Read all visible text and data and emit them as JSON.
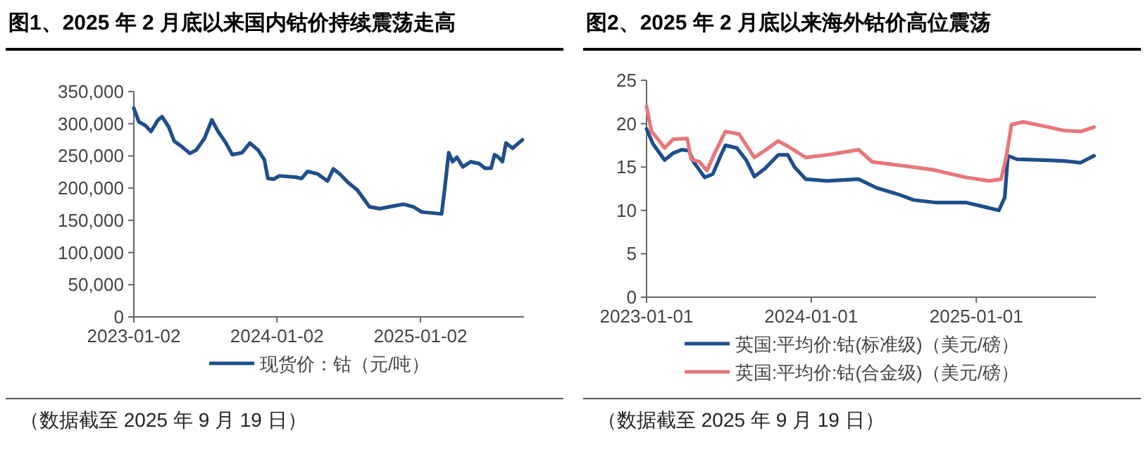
{
  "chart_data": [
    {
      "type": "line",
      "title": "图1、2025 年 2 月底以来国内钴价持续震荡走高",
      "legend": "bottom",
      "xlim": [
        "2023-01-02",
        "2025-09-23"
      ],
      "xticks": [
        "2023-01-02",
        "2024-01-02",
        "2025-01-02"
      ],
      "ylim": [
        0,
        350000
      ],
      "yticks": [
        0,
        {
          "value": 50000,
          "label": "50,000"
        },
        {
          "value": 100000,
          "label": "100,000"
        },
        {
          "value": 150000,
          "label": "150,000"
        },
        {
          "value": 200000,
          "label": "200,000"
        },
        {
          "value": 250000,
          "label": "250,000"
        },
        {
          "value": 300000,
          "label": "300,000"
        },
        {
          "value": 350000,
          "label": "350,000"
        }
      ],
      "annotations": [
        "（数据截至 2025 年 9 月 19 日）"
      ],
      "series": [
        {
          "name": "现货价：钴（元/吨）",
          "color": "#1f4e8c",
          "x": [
            "2023-01-02",
            "2023-01-15",
            "2023-02-01",
            "2023-02-15",
            "2023-03-05",
            "2023-03-15",
            "2023-04-01",
            "2023-04-15",
            "2023-05-01",
            "2023-05-25",
            "2023-06-10",
            "2023-07-01",
            "2023-07-20",
            "2023-08-05",
            "2023-08-25",
            "2023-09-10",
            "2023-10-05",
            "2023-10-25",
            "2023-11-15",
            "2023-12-01",
            "2023-12-10",
            "2023-12-25",
            "2024-01-08",
            "2024-02-20",
            "2024-03-05",
            "2024-03-20",
            "2024-04-15",
            "2024-05-10",
            "2024-05-25",
            "2024-06-10",
            "2024-07-01",
            "2024-07-25",
            "2024-08-25",
            "2024-09-20",
            "2024-10-15",
            "2024-11-20",
            "2024-12-15",
            "2025-01-05",
            "2025-02-25",
            "2025-03-05",
            "2025-03-15",
            "2025-03-25",
            "2025-04-05",
            "2025-04-20",
            "2025-05-10",
            "2025-06-01",
            "2025-06-15",
            "2025-07-01",
            "2025-07-10",
            "2025-07-20",
            "2025-07-30",
            "2025-08-08",
            "2025-08-25",
            "2025-09-19"
          ],
          "values": [
            324000,
            303000,
            297000,
            288000,
            306000,
            311000,
            295000,
            273000,
            266000,
            254000,
            259000,
            277000,
            306000,
            288000,
            270000,
            252000,
            255000,
            270000,
            259000,
            244000,
            215000,
            214000,
            219000,
            217000,
            215000,
            226000,
            222000,
            211000,
            230000,
            222000,
            209000,
            197000,
            171000,
            168000,
            171000,
            175000,
            171000,
            163000,
            160000,
            200000,
            255000,
            241000,
            248000,
            233000,
            241000,
            238000,
            231000,
            231000,
            252000,
            248000,
            241000,
            270000,
            262000,
            275000
          ]
        }
      ]
    },
    {
      "type": "line",
      "title": "图2、2025 年 2 月底以来海外钴价高位震荡",
      "legend": "bottom",
      "xlim": [
        "2023-01-01",
        "2025-09-23"
      ],
      "xticks": [
        "2023-01-01",
        "2024-01-01",
        "2025-01-01"
      ],
      "ylim": [
        0,
        25
      ],
      "yticks": [
        0,
        5,
        10,
        15,
        20,
        25
      ],
      "annotations": [
        "（数据截至 2025 年 9 月 19 日）"
      ],
      "series": [
        {
          "name": "英国:平均价:钴(标准级)（美元/磅）",
          "color": "#1f4e8c",
          "x": [
            "2023-01-01",
            "2023-01-15",
            "2023-02-10",
            "2023-03-01",
            "2023-03-20",
            "2023-04-05",
            "2023-04-15",
            "2023-05-10",
            "2023-05-28",
            "2023-06-15",
            "2023-06-25",
            "2023-07-20",
            "2023-08-10",
            "2023-08-28",
            "2023-09-20",
            "2023-10-20",
            "2023-11-10",
            "2023-11-25",
            "2023-12-20",
            "2024-02-05",
            "2024-04-15",
            "2024-05-25",
            "2024-07-15",
            "2024-08-15",
            "2024-10-05",
            "2024-12-10",
            "2025-01-20",
            "2025-02-20",
            "2025-03-05",
            "2025-03-12",
            "2025-04-01",
            "2025-06-01",
            "2025-07-15",
            "2025-08-20",
            "2025-09-19"
          ],
          "values": [
            19.4,
            17.7,
            15.8,
            16.6,
            17.0,
            16.9,
            15.6,
            13.8,
            14.2,
            16.4,
            17.5,
            17.2,
            15.8,
            13.9,
            14.8,
            16.4,
            16.4,
            15.0,
            13.6,
            13.4,
            13.6,
            12.6,
            11.8,
            11.2,
            10.9,
            10.9,
            10.4,
            10.0,
            11.5,
            16.3,
            15.9,
            15.8,
            15.7,
            15.5,
            16.3
          ]
        },
        {
          "name": "英国:平均价:钴(合金级)（美元/磅）",
          "color": "#e8767a",
          "x": [
            "2023-01-01",
            "2023-01-12",
            "2023-01-25",
            "2023-02-10",
            "2023-03-01",
            "2023-04-01",
            "2023-04-10",
            "2023-04-28",
            "2023-05-15",
            "2023-06-01",
            "2023-06-25",
            "2023-07-25",
            "2023-08-28",
            "2023-09-20",
            "2023-10-20",
            "2023-11-10",
            "2023-12-20",
            "2024-02-05",
            "2024-04-15",
            "2024-05-15",
            "2024-07-15",
            "2024-09-25",
            "2024-12-10",
            "2025-01-30",
            "2025-02-25",
            "2025-03-08",
            "2025-03-20",
            "2025-04-15",
            "2025-06-01",
            "2025-07-15",
            "2025-08-20",
            "2025-09-19"
          ],
          "values": [
            22.0,
            19.1,
            18.3,
            17.2,
            18.2,
            18.3,
            15.9,
            15.6,
            14.6,
            16.6,
            19.1,
            18.8,
            16.1,
            16.9,
            18.0,
            17.4,
            16.1,
            16.4,
            17.0,
            15.6,
            15.2,
            14.7,
            13.8,
            13.4,
            13.6,
            16.1,
            19.9,
            20.2,
            19.7,
            19.2,
            19.1,
            19.6
          ]
        }
      ]
    }
  ]
}
